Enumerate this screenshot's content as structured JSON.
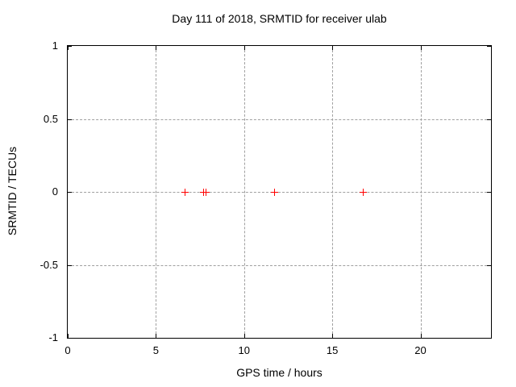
{
  "window": {
    "background": "#ffffff"
  },
  "chart_data": {
    "type": "scatter",
    "title": "Day 111 of 2018, SRMTID for receiver ulab",
    "xlabel": "GPS time / hours",
    "ylabel": "SRMTID / TECUs",
    "xlim": [
      0,
      24
    ],
    "ylim": [
      -1,
      1
    ],
    "xticks": [
      0,
      5,
      10,
      15,
      20
    ],
    "yticks": [
      -1,
      -0.5,
      0,
      0.5,
      1
    ],
    "grid": true,
    "legend": "none",
    "colors": {
      "grid": "#a0a0a0",
      "axis": "#000000",
      "text": "#000000"
    },
    "series": [
      {
        "name": "srmtid-points",
        "marker": "plus",
        "color": "#ff0000",
        "points": [
          {
            "x": 6.64,
            "y": 0
          },
          {
            "x": 7.7,
            "y": 0
          },
          {
            "x": 7.82,
            "y": 0
          },
          {
            "x": 11.71,
            "y": 0
          },
          {
            "x": 16.75,
            "y": 0
          }
        ]
      }
    ]
  }
}
